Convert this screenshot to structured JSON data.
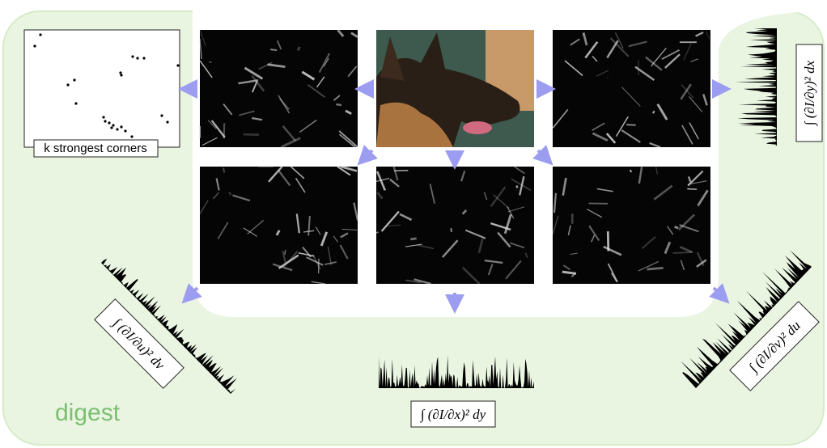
{
  "corners_panel": {
    "label": "k strongest corners"
  },
  "digest_label": "digest",
  "formulas": {
    "right": "∫ (∂I/∂y)² dx",
    "bottom_left": "∫ (∂I/∂u)² dv",
    "bottom_center": "∫ (∂I/∂x)² dy",
    "bottom_right": "∫ (∂I/∂v)² du"
  }
}
